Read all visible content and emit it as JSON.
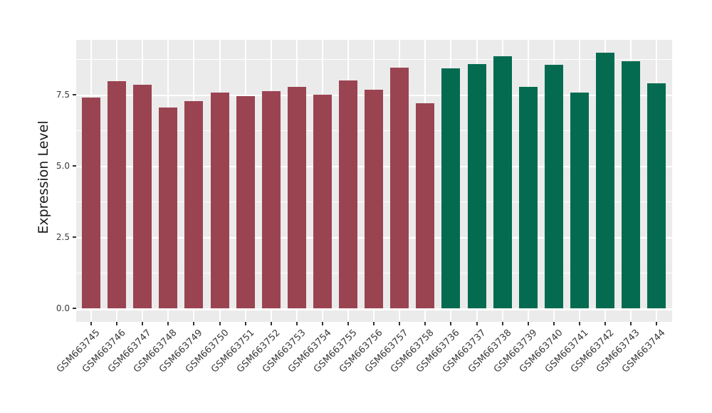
{
  "figure": {
    "background": "#ffffff",
    "panel_background": "#EBEBEB",
    "gridline_color": "#ffffff",
    "tick_mark_color": "#333333",
    "axis_text_color": "#3a3a3a",
    "axis_title_color": "#1a1a1a"
  },
  "chart_data": {
    "type": "bar",
    "title": "",
    "xlabel": "",
    "ylabel": "Expression Level",
    "legend_position": "none",
    "grid": "major and minor horizontal white gridlines plus vertical category gridlines on gray panel",
    "ylim": [
      -0.45,
      9.5
    ],
    "ytick_labels": [
      "0.0",
      "2.5",
      "5.0",
      "7.5"
    ],
    "ytick_values": [
      0,
      2.5,
      5.0,
      7.5
    ],
    "yminor_values": [
      1.25,
      3.75,
      6.25,
      8.75
    ],
    "xtick_label_rotation_deg": 45,
    "categories": [
      "GSM663745",
      "GSM663746",
      "GSM663747",
      "GSM663748",
      "GSM663749",
      "GSM663750",
      "GSM663751",
      "GSM663752",
      "GSM663753",
      "GSM663754",
      "GSM663755",
      "GSM663756",
      "GSM663757",
      "GSM663758",
      "GSM663736",
      "GSM663737",
      "GSM663738",
      "GSM663739",
      "GSM663740",
      "GSM663741",
      "GSM663742",
      "GSM663743",
      "GSM663744"
    ],
    "values": [
      7.41,
      7.97,
      7.84,
      7.06,
      7.27,
      7.57,
      7.46,
      7.62,
      7.77,
      7.49,
      7.99,
      7.68,
      8.44,
      7.19,
      8.43,
      8.58,
      8.85,
      7.78,
      8.56,
      7.58,
      8.97,
      8.68,
      7.91
    ],
    "groups": [
      {
        "name": "group-red",
        "color": "#9A4452",
        "start_index": 0,
        "end_index": 13
      },
      {
        "name": "group-green",
        "color": "#046B50",
        "start_index": 14,
        "end_index": 22
      }
    ]
  }
}
